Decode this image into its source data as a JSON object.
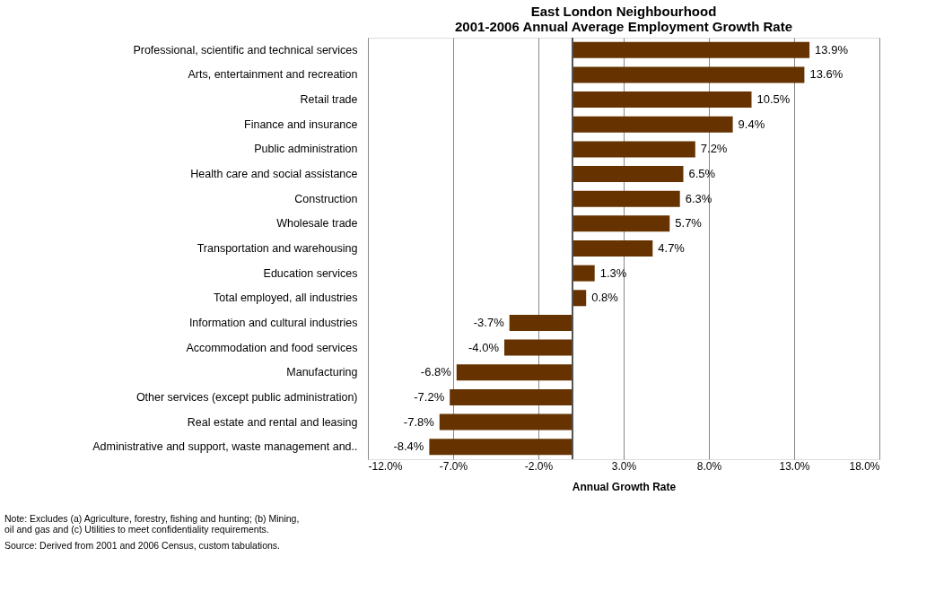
{
  "chart_data": {
    "type": "bar",
    "orientation": "horizontal",
    "title": [
      "East London Neighbourhood",
      "2001-2006 Annual Average Employment Growth Rate"
    ],
    "xlabel": "Annual Growth Rate",
    "categories": [
      "Professional, scientific and technical services",
      "Arts, entertainment and recreation",
      "Retail trade",
      "Finance and insurance",
      "Public administration",
      "Health care and social assistance",
      "Construction",
      "Wholesale trade",
      "Transportation and warehousing",
      "Education services",
      "Total employed, all industries",
      "Information and cultural industries",
      "Accommodation and food services",
      "Manufacturing",
      "Other services (except public administration)",
      "Real estate and rental and leasing",
      "Administrative and support, waste management and.."
    ],
    "values": [
      13.9,
      13.6,
      10.5,
      9.4,
      7.2,
      6.5,
      6.3,
      5.7,
      4.7,
      1.3,
      0.8,
      -3.7,
      -4.0,
      -6.8,
      -7.2,
      -7.8,
      -8.4
    ],
    "value_labels": [
      "13.9%",
      "13.6%",
      "10.5%",
      "9.4%",
      "7.2%",
      "6.5%",
      "6.3%",
      "5.7%",
      "4.7%",
      "1.3%",
      "0.8%",
      "-3.7%",
      "-4.0%",
      "-6.8%",
      "-7.2%",
      "-7.8%",
      "-8.4%"
    ],
    "color": "#663300",
    "xlim": [
      -12,
      18
    ],
    "xticks": [
      {
        "value": -12,
        "label": "-12.0%"
      },
      {
        "value": -7,
        "label": "-7.0%"
      },
      {
        "value": -2,
        "label": "-2.0%"
      },
      {
        "value": 3,
        "label": "3.0%"
      },
      {
        "value": 8,
        "label": "8.0%"
      },
      {
        "value": 13,
        "label": "13.0%"
      },
      {
        "value": 18,
        "label": "18.0%"
      }
    ],
    "grid": "x",
    "annotations": [
      "Note: Excludes (a) Agriculture, forestry, fishing and hunting; (b) Mining, oil and gas and (c) Utilities to meet confidentiality requirements.",
      "Source: Derived from 2001 and 2006 Census, custom tabulations."
    ]
  }
}
